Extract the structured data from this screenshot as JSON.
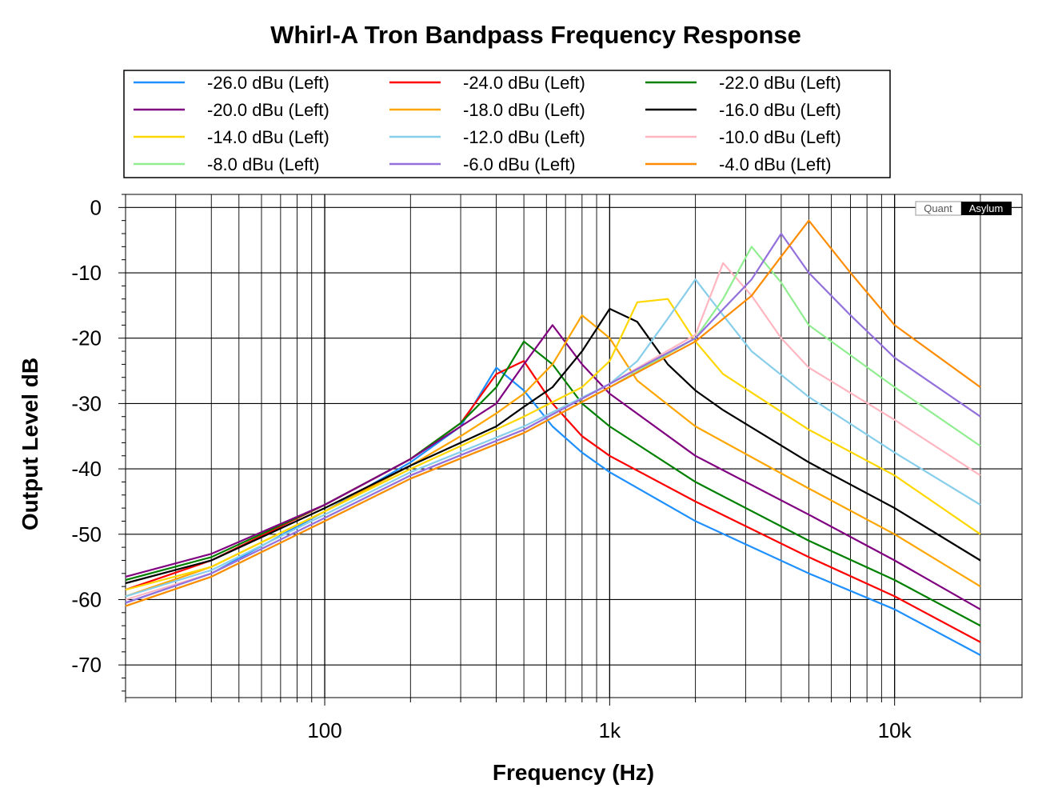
{
  "chart_data": {
    "type": "line",
    "title": "Whirl-A Tron Bandpass Frequency Response",
    "xlabel": "Frequency (Hz)",
    "ylabel": "Output Level dB",
    "xscale": "log",
    "xlim": [
      20,
      28000
    ],
    "ylim": [
      -75,
      2
    ],
    "x_ticks": [
      {
        "value": 100,
        "label": "100"
      },
      {
        "value": 1000,
        "label": "1k"
      },
      {
        "value": 10000,
        "label": "10k"
      }
    ],
    "y_ticks": [
      {
        "value": 0,
        "label": "0"
      },
      {
        "value": -10,
        "label": "-10"
      },
      {
        "value": -20,
        "label": "-20"
      },
      {
        "value": -30,
        "label": "-30"
      },
      {
        "value": -40,
        "label": "-40"
      },
      {
        "value": -50,
        "label": "-50"
      },
      {
        "value": -60,
        "label": "-60"
      },
      {
        "value": -70,
        "label": "-70"
      }
    ],
    "grid": true,
    "legend_position": "top",
    "watermark": {
      "left": "Quant",
      "right": "Asylum"
    },
    "series": [
      {
        "name": "-26.0 dBu (Left)",
        "color": "#1e90ff",
        "points": [
          [
            20,
            -60.5
          ],
          [
            40,
            -56
          ],
          [
            100,
            -46.5
          ],
          [
            200,
            -39
          ],
          [
            300,
            -33.5
          ],
          [
            400,
            -24.5
          ],
          [
            500,
            -28
          ],
          [
            630,
            -33.5
          ],
          [
            800,
            -37.5
          ],
          [
            1000,
            -40.5
          ],
          [
            2000,
            -48
          ],
          [
            5000,
            -56
          ],
          [
            10000,
            -61.5
          ],
          [
            20000,
            -68.5
          ]
        ]
      },
      {
        "name": "-24.0 dBu (Left)",
        "color": "#ff0000",
        "points": [
          [
            20,
            -58.5
          ],
          [
            40,
            -54
          ],
          [
            100,
            -45.5
          ],
          [
            200,
            -38.5
          ],
          [
            300,
            -33
          ],
          [
            400,
            -25.5
          ],
          [
            500,
            -23.5
          ],
          [
            630,
            -30
          ],
          [
            800,
            -35
          ],
          [
            1000,
            -38
          ],
          [
            2000,
            -45
          ],
          [
            5000,
            -53.5
          ],
          [
            10000,
            -59.5
          ],
          [
            20000,
            -66.5
          ]
        ]
      },
      {
        "name": "-22.0 dBu (Left)",
        "color": "#008000",
        "points": [
          [
            20,
            -57
          ],
          [
            40,
            -53.5
          ],
          [
            100,
            -45.5
          ],
          [
            200,
            -38.5
          ],
          [
            300,
            -33
          ],
          [
            400,
            -27.5
          ],
          [
            500,
            -20.5
          ],
          [
            630,
            -24
          ],
          [
            800,
            -30
          ],
          [
            1000,
            -33.5
          ],
          [
            2000,
            -42
          ],
          [
            5000,
            -51
          ],
          [
            10000,
            -57
          ],
          [
            20000,
            -64
          ]
        ]
      },
      {
        "name": "-20.0 dBu (Left)",
        "color": "#800080",
        "points": [
          [
            20,
            -56.5
          ],
          [
            40,
            -53
          ],
          [
            100,
            -45.5
          ],
          [
            200,
            -38.5
          ],
          [
            300,
            -33.5
          ],
          [
            400,
            -30
          ],
          [
            500,
            -24
          ],
          [
            630,
            -18
          ],
          [
            800,
            -24
          ],
          [
            1000,
            -28.5
          ],
          [
            2000,
            -38
          ],
          [
            5000,
            -47
          ],
          [
            10000,
            -54
          ],
          [
            20000,
            -61.5
          ]
        ]
      },
      {
        "name": "-18.0 dBu (Left)",
        "color": "#ffa500",
        "points": [
          [
            20,
            -59.5
          ],
          [
            40,
            -55
          ],
          [
            100,
            -46.5
          ],
          [
            200,
            -39.5
          ],
          [
            300,
            -35
          ],
          [
            400,
            -31.5
          ],
          [
            500,
            -28.5
          ],
          [
            630,
            -24
          ],
          [
            800,
            -16.5
          ],
          [
            1000,
            -20
          ],
          [
            1250,
            -26.5
          ],
          [
            2000,
            -33.5
          ],
          [
            5000,
            -43
          ],
          [
            10000,
            -50
          ],
          [
            20000,
            -58
          ]
        ]
      },
      {
        "name": "-16.0 dBu (Left)",
        "color": "#000000",
        "points": [
          [
            20,
            -57.5
          ],
          [
            40,
            -54
          ],
          [
            100,
            -46
          ],
          [
            200,
            -39.5
          ],
          [
            300,
            -36
          ],
          [
            400,
            -33.5
          ],
          [
            500,
            -30.5
          ],
          [
            630,
            -27.5
          ],
          [
            800,
            -22
          ],
          [
            1000,
            -15.5
          ],
          [
            1250,
            -17.5
          ],
          [
            1600,
            -24
          ],
          [
            2000,
            -28
          ],
          [
            2500,
            -31
          ],
          [
            5000,
            -39
          ],
          [
            10000,
            -46
          ],
          [
            20000,
            -54
          ]
        ]
      },
      {
        "name": "-14.0 dBu (Left)",
        "color": "#ffd700",
        "points": [
          [
            20,
            -58.5
          ],
          [
            40,
            -55
          ],
          [
            100,
            -46.5
          ],
          [
            200,
            -40
          ],
          [
            300,
            -36.5
          ],
          [
            500,
            -32
          ],
          [
            800,
            -27.5
          ],
          [
            1000,
            -23.5
          ],
          [
            1250,
            -14.5
          ],
          [
            1600,
            -14
          ],
          [
            2000,
            -20.5
          ],
          [
            2500,
            -25.5
          ],
          [
            5000,
            -34
          ],
          [
            10000,
            -41
          ],
          [
            20000,
            -50
          ]
        ]
      },
      {
        "name": "-12.0 dBu (Left)",
        "color": "#87ceeb",
        "points": [
          [
            20,
            -59.5
          ],
          [
            40,
            -55.5
          ],
          [
            100,
            -47
          ],
          [
            200,
            -40.5
          ],
          [
            500,
            -33.5
          ],
          [
            1000,
            -27
          ],
          [
            1250,
            -23.5
          ],
          [
            1600,
            -17
          ],
          [
            2000,
            -11
          ],
          [
            2500,
            -16.5
          ],
          [
            3150,
            -22
          ],
          [
            5000,
            -29
          ],
          [
            10000,
            -37.5
          ],
          [
            20000,
            -45.5
          ]
        ]
      },
      {
        "name": "-10.0 dBu (Left)",
        "color": "#ffb6c1",
        "points": [
          [
            20,
            -60
          ],
          [
            40,
            -56
          ],
          [
            100,
            -47.5
          ],
          [
            200,
            -41
          ],
          [
            500,
            -34
          ],
          [
            1000,
            -27
          ],
          [
            2000,
            -19.5
          ],
          [
            2500,
            -8.5
          ],
          [
            3150,
            -13.5
          ],
          [
            4000,
            -20
          ],
          [
            5000,
            -24.5
          ],
          [
            10000,
            -32.5
          ],
          [
            20000,
            -41
          ]
        ]
      },
      {
        "name": "-8.0 dBu (Left)",
        "color": "#90ee90",
        "points": [
          [
            20,
            -61
          ],
          [
            40,
            -56.5
          ],
          [
            100,
            -48
          ],
          [
            200,
            -41.5
          ],
          [
            500,
            -34.5
          ],
          [
            1000,
            -27.5
          ],
          [
            2000,
            -20
          ],
          [
            2500,
            -14
          ],
          [
            3150,
            -6
          ],
          [
            4000,
            -11.5
          ],
          [
            5000,
            -18
          ],
          [
            10000,
            -27.5
          ],
          [
            20000,
            -36.5
          ]
        ]
      },
      {
        "name": "-6.0 dBu (Left)",
        "color": "#9370db",
        "points": [
          [
            20,
            -60.5
          ],
          [
            40,
            -56
          ],
          [
            100,
            -47.5
          ],
          [
            200,
            -41
          ],
          [
            500,
            -34
          ],
          [
            1000,
            -27
          ],
          [
            2000,
            -20
          ],
          [
            3150,
            -11
          ],
          [
            4000,
            -4
          ],
          [
            5000,
            -10
          ],
          [
            7000,
            -16.5
          ],
          [
            10000,
            -23
          ],
          [
            20000,
            -32
          ]
        ]
      },
      {
        "name": "-4.0 dBu (Left)",
        "color": "#ff8c00",
        "points": [
          [
            20,
            -61
          ],
          [
            40,
            -56.5
          ],
          [
            100,
            -48
          ],
          [
            200,
            -41.5
          ],
          [
            500,
            -34.5
          ],
          [
            1000,
            -27.5
          ],
          [
            2000,
            -20.5
          ],
          [
            3150,
            -13.5
          ],
          [
            4000,
            -7.5
          ],
          [
            5000,
            -2
          ],
          [
            7000,
            -10
          ],
          [
            10000,
            -18
          ],
          [
            20000,
            -27.5
          ]
        ]
      }
    ]
  }
}
